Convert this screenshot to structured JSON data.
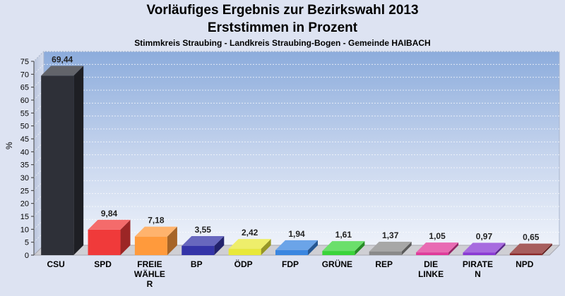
{
  "header": {
    "title": "Vorläufiges Ergebnis zur Bezirkswahl 2013",
    "subtitle": "Erststimmen in Prozent",
    "subsubtitle": "Stimmkreis Straubing - Landkreis Straubing-Bogen - Gemeinde HAIBACH"
  },
  "chart_data": {
    "type": "bar",
    "title": "Vorläufiges Ergebnis zur Bezirkswahl 2013",
    "subtitle": "Erststimmen in Prozent",
    "ylabel": "%",
    "xlabel": "",
    "ylim": [
      0,
      75
    ],
    "yticks": [
      0,
      5,
      10,
      15,
      20,
      25,
      30,
      35,
      40,
      45,
      50,
      55,
      60,
      65,
      70,
      75
    ],
    "grid": true,
    "categories": [
      "CSU",
      "SPD",
      "FREIE WÄHLER",
      "BP",
      "ÖDP",
      "FDP",
      "GRÜNE",
      "REP",
      "DIE LINKE",
      "PIRATEN",
      "NPD"
    ],
    "category_display": [
      [
        "CSU"
      ],
      [
        "SPD"
      ],
      [
        "FREIE",
        "WÄHLE",
        "R"
      ],
      [
        "BP"
      ],
      [
        "ÖDP"
      ],
      [
        "FDP"
      ],
      [
        "GRÜNE"
      ],
      [
        "REP"
      ],
      [
        "DIE",
        "LINKE"
      ],
      [
        "PIRATE",
        "N"
      ],
      [
        "NPD"
      ]
    ],
    "values": [
      69.44,
      9.84,
      7.18,
      3.55,
      2.42,
      1.94,
      1.61,
      1.37,
      1.05,
      0.97,
      0.65
    ],
    "value_labels": [
      "69,44",
      "9,84",
      "7,18",
      "3,55",
      "2,42",
      "1,94",
      "1,61",
      "1,37",
      "1,05",
      "0,97",
      "0,65"
    ],
    "colors": [
      "#2e3038",
      "#f03a3a",
      "#ff9a3c",
      "#3434a8",
      "#e8e83a",
      "#3a86e0",
      "#3ad43a",
      "#8a8a8a",
      "#e03a9a",
      "#8a3ad4",
      "#8a2828"
    ]
  }
}
